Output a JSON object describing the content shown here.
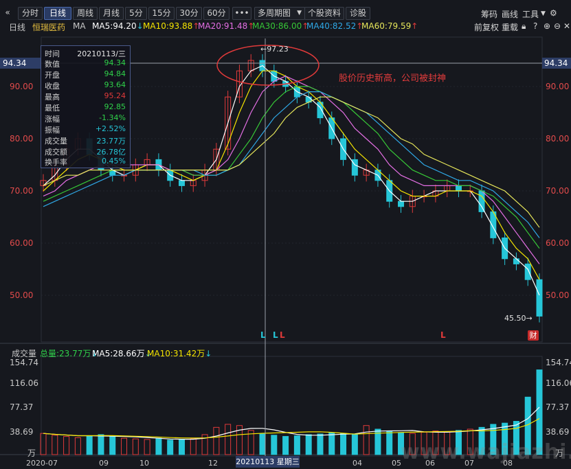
{
  "toolbar": {
    "collapse_icon": "«",
    "buttons": [
      "分时",
      "日线",
      "周线",
      "月线",
      "5分",
      "15分",
      "30分",
      "60分",
      "•••",
      "多周期图",
      "个股资料",
      "诊股"
    ],
    "active": "日线",
    "right_tools": [
      "筹码",
      "画线",
      "工具"
    ]
  },
  "legend": {
    "period": "日线",
    "name": "恒瑞医药",
    "ma_label": "MA",
    "ma5": "MA5:94.20",
    "ma10": "MA10:93.88",
    "ma20": "MA20:91.48",
    "ma30": "MA30:86.00",
    "ma40": "MA40:82.52",
    "ma60": "MA60:79.59",
    "right": [
      "前复权",
      "重载"
    ]
  },
  "colors": {
    "up": "#e03a3a",
    "down": "#26c6d8",
    "ma5": "#ffffff",
    "ma10": "#f4e400",
    "ma20": "#e46fe4",
    "ma30": "#37c837",
    "ma40": "#2fa8e6",
    "ma60": "#e6e65a"
  },
  "price_axis": {
    "ticks": [
      "90.00",
      "80.00",
      "70.00",
      "60.00",
      "50.00"
    ],
    "current": "94.34"
  },
  "infobox": {
    "rows": [
      {
        "k": "时间",
        "v": "20210113/三"
      },
      {
        "k": "数值",
        "v": "94.34"
      },
      {
        "k": "开盘",
        "v": "94.84"
      },
      {
        "k": "收盘",
        "v": "93.64"
      },
      {
        "k": "最高",
        "v": "95.24"
      },
      {
        "k": "最低",
        "v": "92.85"
      },
      {
        "k": "涨幅",
        "v": "-1.34%"
      },
      {
        "k": "振幅",
        "v": "+2.52%"
      },
      {
        "k": "成交量",
        "v": "23.77万"
      },
      {
        "k": "成交额",
        "v": "26.78亿"
      },
      {
        "k": "换手率",
        "v": "0.45%"
      }
    ]
  },
  "annotation": "股价历史新高，公司被封神",
  "high_label": "97.23",
  "low_label": "45.50",
  "cai_badge": "财",
  "volume": {
    "title": "成交量",
    "total": "总量:23.77万",
    "ma5": "MA5:28.66万",
    "ma10": "MA10:31.42万",
    "ticks": [
      "154.74",
      "116.06",
      "77.37",
      "38.69"
    ],
    "unit": "万"
  },
  "xaxis": {
    "labels": [
      "2020-07",
      "09",
      "10",
      "12",
      "04",
      "05",
      "06",
      "07",
      "08"
    ],
    "selected": "20210113 星期三"
  },
  "watermark": "www.wajiazhi.com",
  "chart_data": {
    "type": "line",
    "title": "",
    "ylim": [
      44,
      99
    ],
    "series": [
      {
        "name": "收盘",
        "values": [
          72,
          75,
          78,
          80,
          77,
          74,
          73,
          73,
          75,
          76,
          74,
          72,
          71,
          72,
          74,
          78,
          88,
          93,
          95,
          93,
          91,
          90,
          88,
          87,
          84,
          80,
          76,
          73,
          74,
          72,
          68,
          67,
          69,
          69,
          70,
          71,
          70,
          70,
          66,
          61,
          57,
          56,
          53,
          46
        ]
      },
      {
        "name": "MA5",
        "values": [
          71,
          73,
          76,
          78,
          78,
          76,
          74,
          73,
          74,
          75,
          75,
          73,
          72,
          72,
          73,
          76,
          83,
          90,
          93,
          94,
          92,
          91,
          89,
          88,
          86,
          82,
          78,
          75,
          74,
          73,
          70,
          68,
          68,
          69,
          70,
          70,
          70,
          70,
          67,
          63,
          59,
          57,
          55,
          50
        ]
      },
      {
        "name": "MA10",
        "values": [
          70,
          72,
          74,
          76,
          77,
          76,
          75,
          74,
          74,
          75,
          75,
          74,
          73,
          72,
          73,
          74,
          79,
          85,
          90,
          93,
          93,
          92,
          90,
          89,
          87,
          84,
          81,
          78,
          76,
          74,
          72,
          70,
          69,
          69,
          69,
          70,
          70,
          70,
          69,
          66,
          62,
          59,
          57,
          53
        ]
      },
      {
        "name": "MA20",
        "values": [
          69,
          70,
          72,
          73,
          74,
          75,
          75,
          75,
          75,
          75,
          75,
          74,
          74,
          73,
          73,
          74,
          76,
          80,
          85,
          89,
          91,
          92,
          91,
          90,
          89,
          87,
          85,
          82,
          80,
          78,
          75,
          73,
          72,
          71,
          71,
          71,
          71,
          71,
          70,
          68,
          65,
          62,
          59,
          56
        ]
      },
      {
        "name": "MA30",
        "values": [
          68,
          69,
          70,
          71,
          72,
          73,
          74,
          74,
          74,
          74,
          74,
          74,
          74,
          73,
          73,
          73,
          74,
          77,
          80,
          84,
          87,
          89,
          90,
          90,
          89,
          88,
          87,
          85,
          83,
          81,
          78,
          76,
          74,
          73,
          72,
          72,
          71,
          71,
          70,
          69,
          67,
          65,
          62,
          59
        ]
      },
      {
        "name": "MA40",
        "values": [
          67,
          68,
          69,
          70,
          71,
          72,
          73,
          73,
          74,
          74,
          74,
          74,
          74,
          74,
          73,
          73,
          74,
          75,
          78,
          81,
          84,
          86,
          88,
          89,
          89,
          88,
          87,
          86,
          85,
          83,
          81,
          79,
          77,
          75,
          74,
          73,
          72,
          72,
          71,
          70,
          68,
          66,
          64,
          61
        ]
      },
      {
        "name": "MA60",
        "values": [
          71,
          72,
          73,
          73,
          74,
          74,
          74,
          74,
          74,
          74,
          74,
          74,
          74,
          74,
          74,
          74,
          74,
          75,
          77,
          79,
          81,
          84,
          86,
          87,
          88,
          88,
          87,
          86,
          85,
          84,
          82,
          80,
          79,
          77,
          76,
          75,
          74,
          73,
          72,
          71,
          70,
          68,
          66,
          63
        ]
      }
    ],
    "volume": {
      "ylim": [
        0,
        160
      ],
      "values": [
        35,
        32,
        30,
        28,
        31,
        33,
        30,
        27,
        26,
        25,
        27,
        24,
        25,
        26,
        33,
        45,
        50,
        48,
        40,
        34,
        32,
        30,
        31,
        33,
        34,
        36,
        35,
        33,
        48,
        42,
        38,
        36,
        35,
        37,
        39,
        38,
        40,
        42,
        45,
        50,
        52,
        55,
        95,
        140
      ]
    }
  }
}
